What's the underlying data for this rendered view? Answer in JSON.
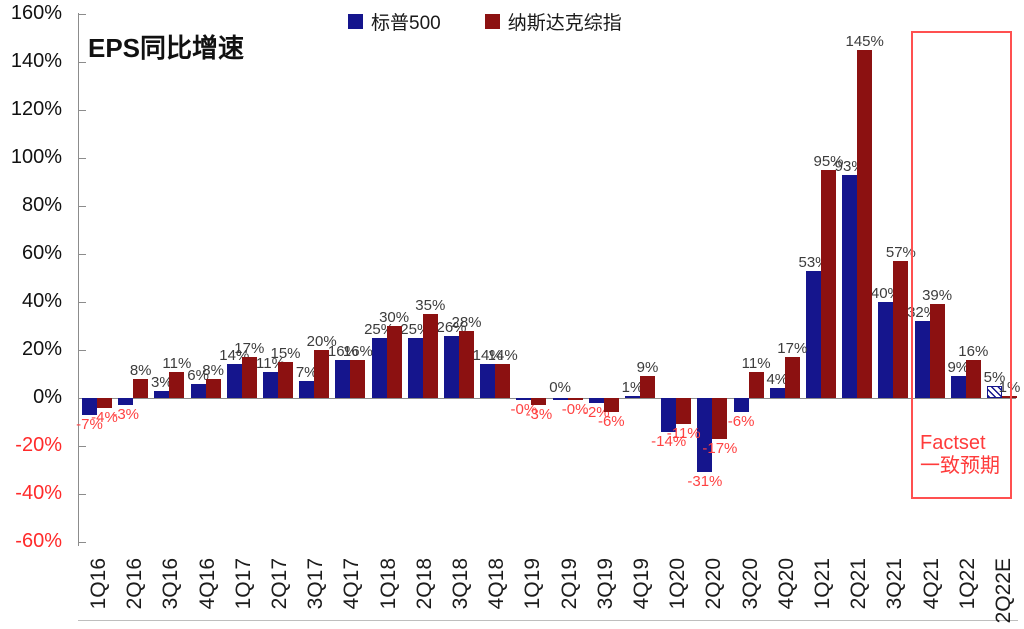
{
  "title": "EPS同比增速",
  "legend": {
    "items": [
      {
        "label": "标普500",
        "color": "#15158D"
      },
      {
        "label": "纳斯达克综指",
        "color": "#8C1111"
      }
    ]
  },
  "chart_data": {
    "type": "bar",
    "title": "EPS同比增速",
    "categories": [
      "1Q16",
      "2Q16",
      "3Q16",
      "4Q16",
      "1Q17",
      "2Q17",
      "3Q17",
      "4Q17",
      "1Q18",
      "2Q18",
      "3Q18",
      "4Q18",
      "1Q19",
      "2Q19",
      "3Q19",
      "4Q19",
      "1Q20",
      "2Q20",
      "3Q20",
      "4Q20",
      "1Q21",
      "2Q21",
      "3Q21",
      "4Q21",
      "1Q22",
      "2Q22E"
    ],
    "series": [
      {
        "name": "标普500",
        "color": "#15158D",
        "values": [
          -7,
          -3,
          3,
          6,
          14,
          11,
          7,
          16,
          25,
          25,
          26,
          14,
          0,
          0,
          -2,
          1,
          -14,
          -31,
          -6,
          4,
          53,
          93,
          40,
          32,
          9,
          5
        ],
        "labels": [
          "-7%",
          "-3%",
          "3%",
          "6%",
          "14%",
          "11%",
          "7%",
          "16%",
          "25%",
          "25%",
          "26%",
          "14%",
          "-0%",
          "0%",
          "-2%",
          "1%",
          "-14%",
          "-31%",
          "-6%",
          "4%",
          "53%",
          "93%",
          "40%",
          "32%",
          "9%",
          "5%"
        ],
        "last_bar_hatched": true
      },
      {
        "name": "纳斯达克综指",
        "color": "#8C1111",
        "values": [
          -4,
          8,
          11,
          8,
          17,
          15,
          20,
          16,
          30,
          35,
          28,
          14,
          -3,
          0,
          -6,
          9,
          -11,
          -17,
          11,
          17,
          95,
          145,
          57,
          39,
          16,
          1
        ],
        "labels": [
          "-4%",
          "8%",
          "11%",
          "8%",
          "17%",
          "15%",
          "20%",
          "16%",
          "30%",
          "35%",
          "28%",
          "14%",
          "-3%",
          "-0%",
          "-6%",
          "9%",
          "-11%",
          "-17%",
          "11%",
          "17%",
          "95%",
          "145%",
          "57%",
          "39%",
          "16%",
          "1%"
        ],
        "last_bar_hatched": false
      }
    ],
    "ylim": [
      -60,
      160
    ],
    "ytick_values": [
      160,
      140,
      120,
      100,
      80,
      60,
      40,
      20,
      0,
      -20,
      -40,
      -60
    ],
    "ytick_labels": [
      "160%",
      "140%",
      "120%",
      "100%",
      "80%",
      "60%",
      "40%",
      "20%",
      "0%",
      "-20%",
      "-40%",
      "-60%"
    ],
    "grid": false,
    "legend_position": "top",
    "annotation_box": {
      "text": "Factset 一致预期",
      "text_line1": "Factset",
      "text_line2": "一致预期",
      "color": "#FF3B3B",
      "from_category": "4Q21",
      "to_category": "2Q22E"
    },
    "colors": {
      "axis": "#8C8C8C",
      "positive_label": "#3C3C3C",
      "negative_label": "#FF4242",
      "ytick_positive": "#111111",
      "ytick_negative": "#FF2A2A",
      "forecast_hatch": "#15158D"
    }
  }
}
